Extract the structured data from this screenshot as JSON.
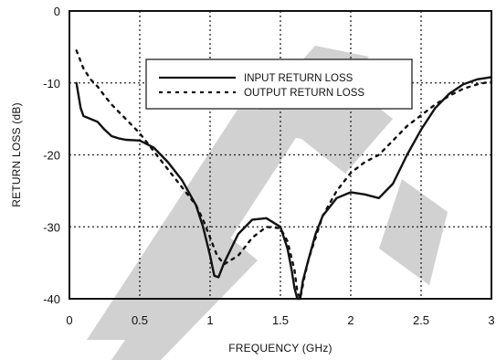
{
  "chart_data": {
    "type": "line",
    "xlabel": "FREQUENCY (GHz)",
    "ylabel": "RETURN LOSS (dB)",
    "xlim": [
      0,
      3
    ],
    "ylim": [
      -40,
      0
    ],
    "xticks": [
      0,
      0.5,
      1,
      1.5,
      2,
      2.5,
      3
    ],
    "yticks": [
      0,
      -10,
      -20,
      -30,
      -40
    ],
    "xtick_labels": [
      "0",
      "0.5",
      "1",
      "1.5",
      "2",
      "2.5",
      "3"
    ],
    "ytick_labels": [
      "0",
      "-10",
      "-20",
      "-30",
      "-40"
    ],
    "grid": true,
    "legend_position": "top-right",
    "series": [
      {
        "name": "INPUT RETURN LOSS",
        "style": "solid",
        "x": [
          0.05,
          0.08,
          0.1,
          0.15,
          0.2,
          0.25,
          0.3,
          0.35,
          0.4,
          0.5,
          0.6,
          0.7,
          0.8,
          0.9,
          0.95,
          1.0,
          1.03,
          1.06,
          1.1,
          1.2,
          1.3,
          1.4,
          1.5,
          1.55,
          1.58,
          1.6,
          1.62,
          1.64,
          1.66,
          1.7,
          1.75,
          1.8,
          1.9,
          2.0,
          2.1,
          2.2,
          2.3,
          2.4,
          2.5,
          2.6,
          2.7,
          2.8,
          2.9,
          3.0
        ],
        "y": [
          -10,
          -13.5,
          -14.6,
          -15.0,
          -15.4,
          -16.5,
          -17.4,
          -17.7,
          -17.9,
          -18.0,
          -19.0,
          -21.0,
          -23.5,
          -27.0,
          -30.0,
          -34.0,
          -36.8,
          -37.0,
          -35.0,
          -31.0,
          -29.0,
          -28.8,
          -30.0,
          -33.0,
          -36.0,
          -38.5,
          -40.0,
          -40.0,
          -37.5,
          -34.5,
          -31.0,
          -28.5,
          -26.0,
          -25.2,
          -25.5,
          -26.0,
          -24.0,
          -20.0,
          -16.5,
          -13.5,
          -11.5,
          -10.2,
          -9.5,
          -9.2
        ]
      },
      {
        "name": "OUTPUT RETURN LOSS",
        "style": "dashed",
        "x": [
          0.05,
          0.1,
          0.15,
          0.2,
          0.25,
          0.3,
          0.35,
          0.4,
          0.45,
          0.5,
          0.6,
          0.7,
          0.8,
          0.9,
          0.95,
          1.0,
          1.05,
          1.1,
          1.2,
          1.3,
          1.4,
          1.5,
          1.55,
          1.6,
          1.62,
          1.64,
          1.67,
          1.7,
          1.75,
          1.8,
          1.9,
          2.0,
          2.1,
          2.2,
          2.3,
          2.4,
          2.5,
          2.6,
          2.7,
          2.8,
          2.9,
          3.0
        ],
        "y": [
          -5.5,
          -8.0,
          -9.5,
          -10.5,
          -11.8,
          -13.0,
          -14.0,
          -15.0,
          -16.0,
          -17.0,
          -19.5,
          -22.0,
          -24.5,
          -27.0,
          -29.0,
          -31.5,
          -34.0,
          -35.2,
          -34.0,
          -31.5,
          -30.0,
          -30.2,
          -32.0,
          -36.0,
          -39.0,
          -40.0,
          -37.0,
          -34.5,
          -31.5,
          -28.5,
          -25.0,
          -22.5,
          -21.0,
          -20.0,
          -18.0,
          -16.0,
          -14.5,
          -13.0,
          -11.8,
          -10.8,
          -10.2,
          -9.8
        ]
      }
    ],
    "watermark": "TE"
  }
}
